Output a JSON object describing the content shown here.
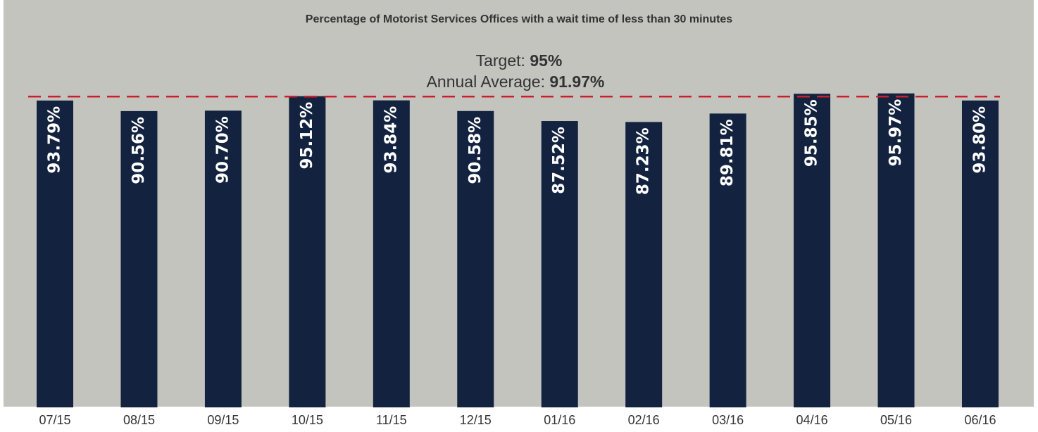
{
  "chart_data": {
    "type": "bar",
    "title": "Percentage of Motorist Services Offices with a wait time of less than 30 minutes",
    "categories": [
      "07/15",
      "08/15",
      "09/15",
      "10/15",
      "11/15",
      "12/15",
      "01/16",
      "02/16",
      "03/16",
      "04/16",
      "05/16",
      "06/16"
    ],
    "values": [
      93.79,
      90.56,
      90.7,
      95.12,
      93.84,
      90.58,
      87.52,
      87.23,
      89.81,
      95.85,
      95.97,
      93.8
    ],
    "value_labels": [
      "93.79%",
      "90.56%",
      "90.70%",
      "95.12%",
      "93.84%",
      "90.58%",
      "87.52%",
      "87.23%",
      "89.81%",
      "95.85%",
      "95.97%",
      "93.80%"
    ],
    "color": "#13233f",
    "ylim": [
      0,
      100
    ],
    "target": {
      "text": "Target:",
      "value": 95,
      "label": "95%",
      "color": "#c8202f"
    },
    "average": {
      "text": "Annual Average:",
      "value": 91.97,
      "label": "91.97%"
    }
  }
}
